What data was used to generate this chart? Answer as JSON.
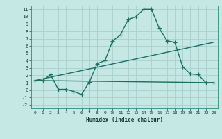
{
  "xlabel": "Humidex (Indice chaleur)",
  "bg_color": "#c5e8e5",
  "grid_color": "#a8d0ce",
  "line_color": "#1a6e62",
  "xlim": [
    -0.5,
    23.5
  ],
  "ylim": [
    -2.5,
    11.5
  ],
  "xticks": [
    0,
    1,
    2,
    3,
    4,
    5,
    6,
    7,
    8,
    9,
    10,
    11,
    12,
    13,
    14,
    15,
    16,
    17,
    18,
    19,
    20,
    21,
    22,
    23
  ],
  "yticks": [
    -2,
    -1,
    0,
    1,
    2,
    3,
    4,
    5,
    6,
    7,
    8,
    9,
    10,
    11
  ],
  "line1_x": [
    0,
    1,
    2,
    3,
    4,
    5,
    6,
    7,
    8,
    9,
    10,
    11,
    12,
    13,
    14,
    15,
    16,
    17,
    18,
    19,
    20,
    21,
    22,
    23
  ],
  "line1_y": [
    1.3,
    1.3,
    2.1,
    0.1,
    0.1,
    -0.2,
    -0.6,
    1.1,
    3.6,
    4.0,
    6.7,
    7.5,
    9.6,
    10.0,
    11.0,
    11.0,
    8.4,
    6.7,
    6.5,
    3.2,
    2.2,
    2.1,
    1.0,
    1.0
  ],
  "line2_x": [
    0,
    23
  ],
  "line2_y": [
    1.3,
    1.0
  ],
  "line3_x": [
    0,
    23
  ],
  "line3_y": [
    1.3,
    6.5
  ],
  "marker_size": 4,
  "line_width": 1.0
}
